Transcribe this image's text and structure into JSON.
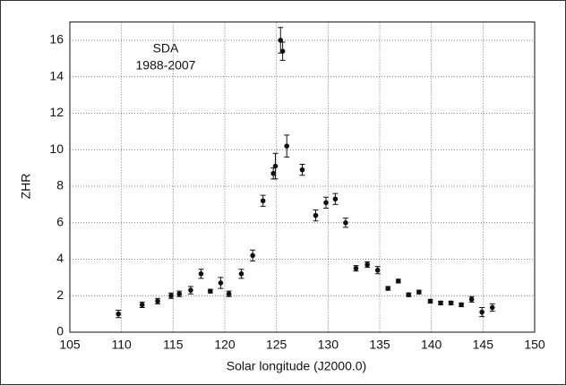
{
  "chart_data": {
    "type": "scatter",
    "xlabel": "Solar longitude (J2000.0)",
    "ylabel": "ZHR",
    "annotations": [
      "SDA",
      "1988-2007"
    ],
    "x": [
      109.7,
      112.0,
      113.5,
      114.8,
      115.6,
      116.7,
      117.7,
      118.6,
      119.6,
      120.4,
      121.6,
      122.7,
      123.7,
      124.7,
      124.9,
      125.4,
      125.6,
      126.0,
      127.5,
      128.8,
      129.8,
      130.7,
      131.7,
      132.7,
      133.8,
      134.8,
      135.8,
      136.8,
      137.8,
      138.8,
      139.9,
      140.9,
      141.9,
      142.9,
      143.9,
      144.9,
      145.9
    ],
    "y": [
      1.0,
      1.5,
      1.7,
      2.0,
      2.1,
      2.3,
      3.2,
      2.25,
      2.7,
      2.1,
      3.2,
      4.2,
      7.2,
      8.7,
      9.1,
      16.0,
      15.4,
      10.2,
      8.9,
      6.4,
      7.1,
      7.3,
      6.0,
      3.5,
      3.7,
      3.4,
      2.4,
      2.8,
      2.05,
      2.2,
      1.7,
      1.6,
      1.6,
      1.5,
      1.8,
      1.1,
      1.35
    ],
    "errors": [
      0.2,
      0.15,
      0.15,
      0.15,
      0.15,
      0.2,
      0.25,
      0.1,
      0.3,
      0.15,
      0.25,
      0.3,
      0.3,
      0.3,
      0.7,
      0.7,
      0.5,
      0.6,
      0.3,
      0.3,
      0.3,
      0.3,
      0.25,
      0.15,
      0.15,
      0.2,
      0.1,
      0.1,
      0.1,
      0.1,
      0.1,
      0.1,
      0.1,
      0.1,
      0.15,
      0.25,
      0.2
    ],
    "color": "#111111",
    "xlim": [
      105,
      150
    ],
    "ylim": [
      0,
      17
    ],
    "xticks": [
      105,
      110,
      115,
      120,
      125,
      130,
      135,
      140,
      145,
      150
    ],
    "yticks": [
      0,
      2,
      4,
      6,
      8,
      10,
      12,
      14,
      16
    ],
    "grid": true
  }
}
